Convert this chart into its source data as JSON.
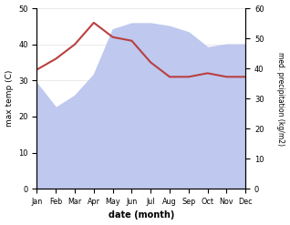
{
  "months": [
    "Jan",
    "Feb",
    "Mar",
    "Apr",
    "May",
    "Jun",
    "Jul",
    "Aug",
    "Sep",
    "Oct",
    "Nov",
    "Dec"
  ],
  "temperature": [
    33,
    36,
    40,
    46,
    42,
    41,
    35,
    31,
    31,
    32,
    31,
    31
  ],
  "precipitation_mm": [
    35,
    27,
    31,
    38,
    53,
    55,
    55,
    54,
    52,
    47,
    48,
    48
  ],
  "temp_color": "#b94040",
  "precip_fill_color": "#bfc8ef",
  "precip_line_color": "#bfc8ef",
  "left_ylabel": "max temp (C)",
  "right_ylabel": "med. precipitation (kg/m2)",
  "xlabel": "date (month)",
  "ylim_left": [
    0,
    50
  ],
  "ylim_right": [
    0,
    60
  ],
  "yticks_left": [
    0,
    10,
    20,
    30,
    40,
    50
  ],
  "yticks_right": [
    0,
    10,
    20,
    30,
    40,
    50,
    60
  ],
  "bg_color": "#ffffff"
}
